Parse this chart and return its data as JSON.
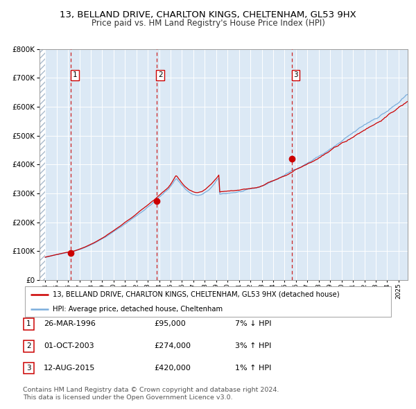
{
  "title": "13, BELLAND DRIVE, CHARLTON KINGS, CHELTENHAM, GL53 9HX",
  "subtitle": "Price paid vs. HM Land Registry's House Price Index (HPI)",
  "title_fontsize": 9.5,
  "subtitle_fontsize": 8.5,
  "hpi_color": "#7aaddc",
  "price_color": "#cc0000",
  "bg_color": "#dce9f5",
  "grid_color": "#ffffff",
  "vline_color": "#cc2222",
  "ylim": [
    0,
    800000
  ],
  "yticks": [
    0,
    100000,
    200000,
    300000,
    400000,
    500000,
    600000,
    700000,
    800000
  ],
  "ytick_labels": [
    "£0",
    "£100K",
    "£200K",
    "£300K",
    "£400K",
    "£500K",
    "£600K",
    "£700K",
    "£800K"
  ],
  "xlim_start": 1993.5,
  "xlim_end": 2025.8,
  "sale_dates": [
    1996.23,
    2003.75,
    2015.62
  ],
  "sale_prices": [
    95000,
    274000,
    420000
  ],
  "sale_labels": [
    "1",
    "2",
    "3"
  ],
  "legend_line1": "13, BELLAND DRIVE, CHARLTON KINGS, CHELTENHAM, GL53 9HX (detached house)",
  "legend_line2": "HPI: Average price, detached house, Cheltenham",
  "table_entries": [
    {
      "label": "1",
      "date": "26-MAR-1996",
      "price": "£95,000",
      "hpi": "7% ↓ HPI"
    },
    {
      "label": "2",
      "date": "01-OCT-2003",
      "price": "£274,000",
      "hpi": "3% ↑ HPI"
    },
    {
      "label": "3",
      "date": "12-AUG-2015",
      "price": "£420,000",
      "hpi": "1% ↑ HPI"
    }
  ],
  "footer1": "Contains HM Land Registry data © Crown copyright and database right 2024.",
  "footer2": "This data is licensed under the Open Government Licence v3.0."
}
